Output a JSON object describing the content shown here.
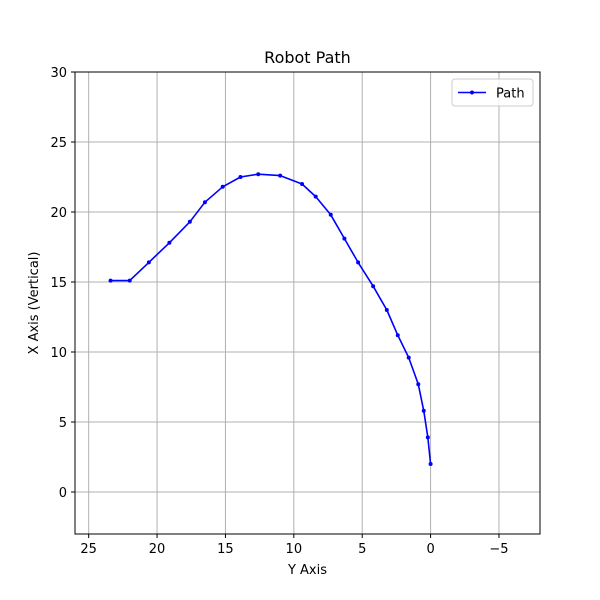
{
  "chart_data": {
    "type": "line",
    "title": "Robot Path",
    "xlabel": "Y Axis",
    "ylabel": "X Axis (Vertical)",
    "x_inverted": true,
    "xlim": [
      26,
      -8
    ],
    "ylim": [
      -3,
      30
    ],
    "x_ticks": [
      25,
      20,
      15,
      10,
      5,
      0,
      -5
    ],
    "x_tick_labels": [
      "25",
      "20",
      "15",
      "10",
      "5",
      "0",
      "−5"
    ],
    "y_ticks": [
      0,
      5,
      10,
      15,
      20,
      25,
      30
    ],
    "y_tick_labels": [
      "0",
      "5",
      "10",
      "15",
      "20",
      "25",
      "30"
    ],
    "grid": true,
    "legend_position": "top-right",
    "series": [
      {
        "name": "Path",
        "color": "#0000ff",
        "marker": "dot",
        "x": [
          0.0,
          0.2,
          0.5,
          0.9,
          1.6,
          2.4,
          3.2,
          4.2,
          5.3,
          6.3,
          7.3,
          8.4,
          9.4,
          11.0,
          12.6,
          13.9,
          15.2,
          16.5,
          17.6,
          19.1,
          20.6,
          22.0,
          23.4
        ],
        "y": [
          2.0,
          3.9,
          5.8,
          7.7,
          9.6,
          11.2,
          13.0,
          14.7,
          16.4,
          18.1,
          19.8,
          21.1,
          22.0,
          22.6,
          22.7,
          22.5,
          21.8,
          20.7,
          19.3,
          17.8,
          16.4,
          15.1,
          15.1
        ]
      }
    ]
  }
}
